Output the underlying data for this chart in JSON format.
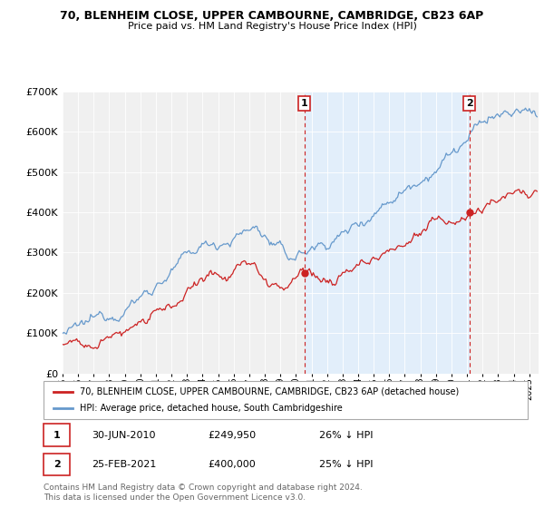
{
  "title": "70, BLENHEIM CLOSE, UPPER CAMBOURNE, CAMBRIDGE, CB23 6AP",
  "subtitle": "Price paid vs. HM Land Registry's House Price Index (HPI)",
  "legend_line1": "70, BLENHEIM CLOSE, UPPER CAMBOURNE, CAMBRIDGE, CB23 6AP (detached house)",
  "legend_line2": "HPI: Average price, detached house, South Cambridgeshire",
  "purchase1_date": "30-JUN-2010",
  "purchase1_price": 249950,
  "purchase1_label": "26% ↓ HPI",
  "purchase2_date": "25-FEB-2021",
  "purchase2_price": 400000,
  "purchase2_label": "25% ↓ HPI",
  "footnote": "Contains HM Land Registry data © Crown copyright and database right 2024.\nThis data is licensed under the Open Government Licence v3.0.",
  "red_color": "#cc2222",
  "blue_color": "#6699cc",
  "highlight_color": "#ddeeff",
  "background_color": "#f0f0f0",
  "ylim": [
    0,
    700000
  ],
  "purchase1_year": 2010.5,
  "purchase2_year": 2021.15
}
